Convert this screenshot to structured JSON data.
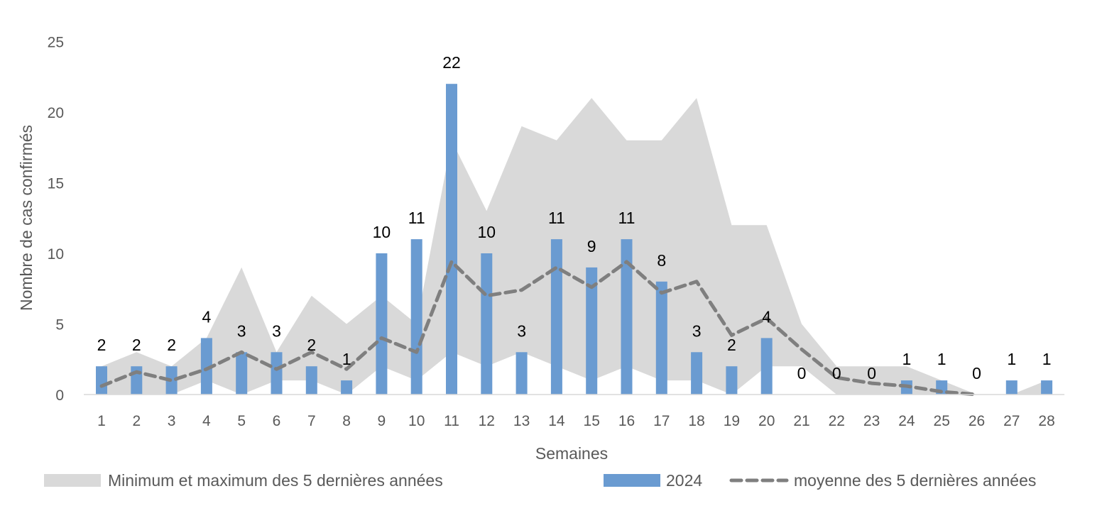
{
  "chart_data": {
    "type": "bar",
    "xlabel": "Semaines",
    "ylabel": "Nombre de cas confirmés",
    "ylim": [
      0,
      25
    ],
    "yticks": [
      "0",
      "5",
      "10",
      "15",
      "20",
      "25"
    ],
    "categories": [
      "1",
      "2",
      "3",
      "4",
      "5",
      "6",
      "7",
      "8",
      "9",
      "10",
      "11",
      "12",
      "13",
      "14",
      "15",
      "16",
      "17",
      "18",
      "19",
      "20",
      "21",
      "22",
      "23",
      "24",
      "25",
      "26",
      "27",
      "28"
    ],
    "series": [
      {
        "name": "Minimum et maximum des 5 dernières années",
        "kind": "range-area",
        "color": "#D9D9D9",
        "min": [
          0,
          0,
          0,
          1,
          0,
          1,
          1,
          0,
          2,
          1,
          3,
          2,
          3,
          2,
          1,
          2,
          1,
          1,
          0,
          2,
          2,
          0,
          0,
          0,
          0,
          0,
          0,
          0
        ],
        "max": [
          2,
          3,
          2,
          4,
          9,
          3,
          7,
          5,
          7,
          5,
          18,
          13,
          19,
          18,
          21,
          18,
          18,
          21,
          12,
          12,
          5,
          2,
          2,
          2,
          1,
          0,
          0,
          1
        ]
      },
      {
        "name": "2024",
        "kind": "bar",
        "color": "#6A9BD1",
        "values": [
          2,
          2,
          2,
          4,
          3,
          3,
          2,
          1,
          10,
          11,
          22,
          10,
          3,
          11,
          9,
          11,
          8,
          3,
          2,
          4,
          0,
          0,
          0,
          1,
          1,
          0,
          1,
          1
        ],
        "labels": [
          "2",
          "2",
          "2",
          "4",
          "3",
          "3",
          "2",
          "1",
          "10",
          "11",
          "22",
          "10",
          "3",
          "11",
          "9",
          "11",
          "8",
          "3",
          "2",
          "4",
          "0",
          "0",
          "0",
          "1",
          "1",
          "0",
          "1",
          "1"
        ]
      },
      {
        "name": "moyenne des 5 dernières années",
        "kind": "line-dashed",
        "color": "#7F7F7F",
        "values": [
          0.6,
          1.6,
          1.0,
          1.8,
          3.0,
          1.8,
          3.0,
          1.8,
          4.0,
          3.0,
          9.4,
          7.0,
          7.4,
          9.0,
          7.6,
          9.4,
          7.2,
          8.0,
          4.2,
          5.4,
          3.2,
          1.2,
          0.8,
          0.6,
          0.2,
          0.0,
          null,
          null
        ]
      }
    ],
    "grid": false,
    "legend": "bottom"
  }
}
